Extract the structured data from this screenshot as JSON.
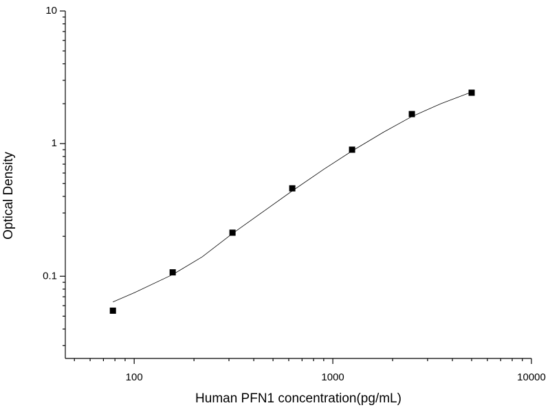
{
  "chart_data": {
    "type": "scatter",
    "xlabel": "Human PFN1 concentration(pg/mL)",
    "ylabel": "Optical Density",
    "log_x": true,
    "log_y": true,
    "xlim": [
      45,
      10000
    ],
    "ylim": [
      0.024,
      10
    ],
    "xticks": [
      100,
      1000,
      10000
    ],
    "yticks": [
      0.1,
      1,
      10
    ],
    "series": [
      {
        "type": "scatter",
        "marker": "square",
        "color": "#000000",
        "x": [
          78.13,
          156.25,
          312.5,
          625,
          1250,
          2500,
          5000
        ],
        "values": [
          0.055,
          0.107,
          0.213,
          0.46,
          0.9,
          1.67,
          2.42
        ]
      },
      {
        "type": "line",
        "color": "#000000",
        "x": [
          78.13,
          100,
          156.25,
          220,
          312.5,
          450,
          625,
          900,
          1250,
          1800,
          2500,
          3500,
          5000
        ],
        "values": [
          0.064,
          0.075,
          0.103,
          0.14,
          0.21,
          0.31,
          0.44,
          0.64,
          0.88,
          1.22,
          1.6,
          2.0,
          2.45
        ]
      }
    ]
  }
}
